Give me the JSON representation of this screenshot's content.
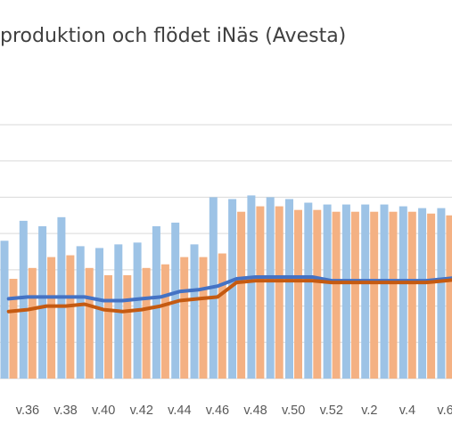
{
  "chart_data": {
    "type": "bar",
    "title": "produktion och flödet iNäs (Avesta)",
    "xlabel": "",
    "ylabel": "",
    "categories": [
      "",
      "v.36",
      "",
      "v.38",
      "",
      "v.40",
      "",
      "v.42",
      "",
      "v.44",
      "",
      "v.46",
      "",
      "v.48",
      "",
      "v.50",
      "",
      "v.52",
      "",
      "v.2",
      "",
      "v.4",
      "",
      "v.6",
      ""
    ],
    "tick_labels": [
      "v.36",
      "v.38",
      "v.40",
      "v.42",
      "v.44",
      "v.46",
      "v.48",
      "v.50",
      "v.52",
      "v.2",
      "v.4",
      "v.6"
    ],
    "series": [
      {
        "kind": "bar",
        "color": "#9dc3e6",
        "values": [
          76,
          87,
          84,
          89,
          73,
          72,
          74,
          75,
          84,
          86,
          74,
          100,
          99,
          101,
          100,
          99,
          97,
          96,
          96,
          96,
          96,
          95,
          94,
          94,
          92
        ]
      },
      {
        "kind": "bar",
        "color": "#f4b183",
        "values": [
          55,
          61,
          67,
          68,
          61,
          57,
          57,
          61,
          63,
          67,
          67,
          69,
          92,
          95,
          95,
          93,
          93,
          92,
          92,
          92,
          92,
          92,
          91,
          90,
          90
        ]
      },
      {
        "kind": "line",
        "color": "#4472c4",
        "values": [
          44,
          45,
          45,
          45,
          45,
          43,
          43,
          44,
          45,
          48,
          49,
          51,
          55,
          56,
          56,
          56,
          56,
          54,
          54,
          54,
          54,
          54,
          54,
          55,
          56
        ]
      },
      {
        "kind": "line",
        "color": "#c55a11",
        "values": [
          37,
          38,
          40,
          40,
          41,
          38,
          37,
          38,
          40,
          43,
          44,
          45,
          53,
          54,
          54,
          54,
          54,
          53,
          53,
          53,
          53,
          53,
          53,
          54,
          55
        ]
      }
    ],
    "ylim": [
      0,
      140
    ],
    "grid": true,
    "legend": "none"
  }
}
